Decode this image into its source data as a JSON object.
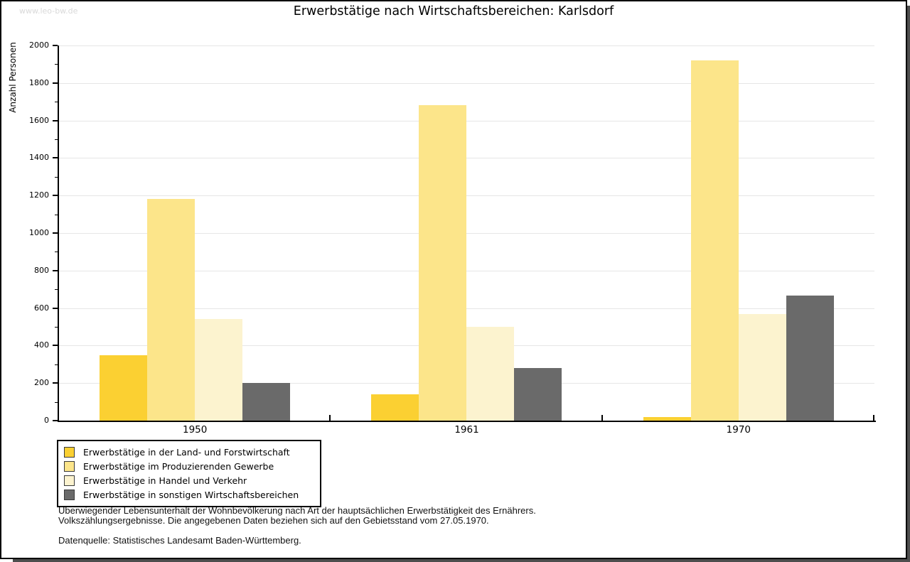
{
  "watermark": "www.leo-bw.de",
  "title": "Erwerbstätige nach Wirtschaftsbereichen: Karlsdorf",
  "chart_data": {
    "type": "bar",
    "title": "Erwerbstätige nach Wirtschaftsbereichen: Karlsdorf",
    "xlabel": "",
    "ylabel": "Anzahl Personen",
    "ylim": [
      0,
      2000
    ],
    "y_major_step": 200,
    "y_minor_step": 100,
    "grid": "horizontal-major",
    "legend_position": "bottom-left-box",
    "categories": [
      "1950",
      "1961",
      "1970"
    ],
    "series": [
      {
        "name": "Erwerbstätige in der Land- und Forstwirtschaft",
        "color": "#FBD032",
        "values": [
          350,
          140,
          20
        ]
      },
      {
        "name": "Erwerbstätige im Produzierenden Gewerbe",
        "color": "#FCE58A",
        "values": [
          1180,
          1680,
          1920
        ]
      },
      {
        "name": "Erwerbstätige in Handel und Verkehr",
        "color": "#FCF3CF",
        "values": [
          540,
          500,
          570
        ]
      },
      {
        "name": "Erwerbstätige in sonstigen Wirtschaftsbereichen",
        "color": "#6A6A6A",
        "values": [
          200,
          280,
          665
        ]
      }
    ]
  },
  "footer": {
    "note_line1": "Überwiegender Lebensunterhalt der Wohnbevölkerung nach Art der hauptsächlichen Erwerbstätigkeit des Ernährers.",
    "note_line2": "Volkszählungsergebnisse. Die angegebenen Daten beziehen sich auf den Gebietsstand vom 27.05.1970.",
    "source": "Datenquelle: Statistisches Landesamt Baden-Württemberg."
  },
  "colors": {
    "gridline": "#E6E6E6",
    "axis": "#000000",
    "watermark": "#D9D9D9",
    "frame_shadow": "#4D4D4D"
  }
}
